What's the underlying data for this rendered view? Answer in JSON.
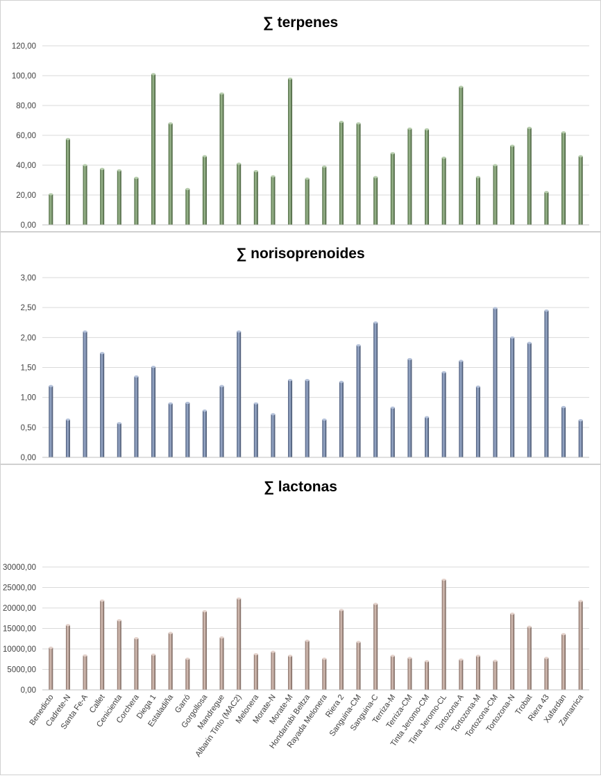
{
  "chart_data": [
    {
      "type": "bar",
      "title": "∑  terpenes",
      "color": "#6f9a5a",
      "ylim": [
        0,
        120
      ],
      "yticks": [
        "0,00",
        "20,00",
        "40,00",
        "60,00",
        "80,00",
        "100,00",
        "120,00"
      ],
      "values": [
        20.5,
        57.5,
        40,
        37.5,
        36.5,
        31.5,
        101,
        68,
        24,
        46,
        88,
        41,
        36,
        32.5,
        98,
        31,
        39,
        69,
        68,
        32,
        48,
        64.5,
        64,
        45,
        92.5,
        32,
        40,
        53,
        65,
        22,
        62,
        46
      ],
      "grid": true
    },
    {
      "type": "bar",
      "title": "∑ norisoprenoides",
      "color": "#6b85b5",
      "ylim": [
        0,
        3
      ],
      "yticks": [
        "0,00",
        "0,50",
        "1,00",
        "1,50",
        "2,00",
        "2,50",
        "3,00"
      ],
      "values": [
        1.19,
        0.63,
        2.1,
        1.74,
        0.57,
        1.35,
        1.51,
        0.9,
        0.91,
        0.78,
        1.19,
        2.1,
        0.9,
        0.72,
        1.29,
        1.29,
        0.63,
        1.26,
        1.87,
        2.25,
        0.83,
        1.64,
        0.67,
        1.42,
        1.61,
        1.18,
        2.49,
        2.0,
        1.91,
        2.45,
        0.84,
        0.62
      ],
      "grid": true
    },
    {
      "type": "bar",
      "title": "∑ lactonas",
      "color": "#c9a596",
      "ylim": [
        0,
        30000
      ],
      "yticks": [
        "0,00",
        "5000,00",
        "10000,00",
        "15000,00",
        "20000,00",
        "25000,00",
        "30000,00"
      ],
      "categories": [
        "Benedicto",
        "Cadrete-N",
        "Santa Fe-A",
        "Callet",
        "Cenicienta",
        "Corchera",
        "Diega 1",
        "Estaladiña",
        "Garró",
        "Gorgollosa",
        "Mandregue",
        "Albarin Tinto (MAC2)",
        "Melonera",
        "Morate-N",
        "Morate-M",
        "Hondarrabi Beltza",
        "Rayada Melonera",
        "Riera 2",
        "Sanguina-CM",
        "Sanguina-C",
        "Terriza-M",
        "Terriza-CM",
        "Tinta Jeromo-CM",
        "Tinta Jeromo-CL",
        "Tortozona-A",
        "Tortozona-M",
        "Tortozona-CM",
        "Tortozona-N",
        "Trobat",
        "Riera 43",
        "Xafardan",
        "Zamarrica"
      ],
      "values": [
        10300,
        15800,
        8400,
        21800,
        17000,
        12600,
        8600,
        13900,
        7600,
        19200,
        12800,
        22300,
        8700,
        9300,
        8300,
        12000,
        7600,
        19500,
        11700,
        21000,
        8300,
        7800,
        7000,
        26900,
        7400,
        8300,
        7100,
        18600,
        15400,
        7800,
        13600,
        21700
      ],
      "grid": true
    }
  ]
}
